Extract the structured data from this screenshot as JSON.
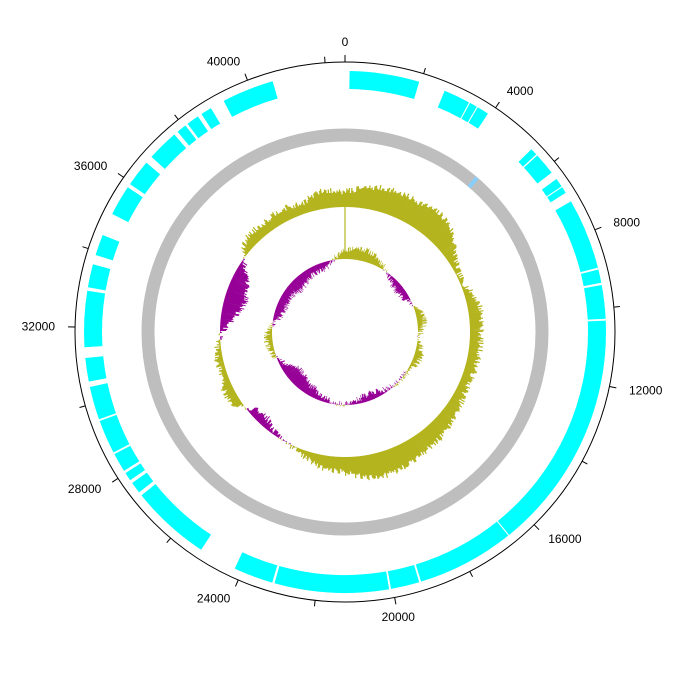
{
  "genome_map": {
    "type": "circular-genome-map",
    "total_length": 42500,
    "tick_interval": 4000,
    "tick_labels": [
      "0",
      "4000",
      "8000",
      "12000",
      "16000",
      "20000",
      "24000",
      "28000",
      "32000",
      "36000",
      "40000"
    ],
    "colors": {
      "feature": "#00ffff",
      "backbone": "#bebebe",
      "backbone_mark": "#87cefa",
      "gc_positive": "#b4b41e",
      "gc_negative": "#960096",
      "axis": "#000000"
    },
    "features": [
      {
        "start": 120,
        "end": 1950
      },
      {
        "start": 2650,
        "end": 3350
      },
      {
        "start": 3380,
        "end": 3580
      },
      {
        "start": 3610,
        "end": 3920
      },
      {
        "start": 5380,
        "end": 5560
      },
      {
        "start": 5600,
        "end": 6180
      },
      {
        "start": 6390,
        "end": 6620
      },
      {
        "start": 6650,
        "end": 6820
      },
      {
        "start": 7080,
        "end": 8940
      },
      {
        "start": 8990,
        "end": 9340
      },
      {
        "start": 9400,
        "end": 10280
      },
      {
        "start": 10330,
        "end": 16650
      },
      {
        "start": 16680,
        "end": 19250
      },
      {
        "start": 19300,
        "end": 20050
      },
      {
        "start": 20100,
        "end": 23100
      },
      {
        "start": 23160,
        "end": 24200
      },
      {
        "start": 25200,
        "end": 27300
      },
      {
        "start": 27400,
        "end": 27700
      },
      {
        "start": 27790,
        "end": 28010
      },
      {
        "start": 28080,
        "end": 28580
      },
      {
        "start": 28630,
        "end": 29520
      },
      {
        "start": 29570,
        "end": 30440
      },
      {
        "start": 30580,
        "end": 31200
      },
      {
        "start": 31480,
        "end": 32950
      },
      {
        "start": 33040,
        "end": 33650
      },
      {
        "start": 33900,
        "end": 34450
      },
      {
        "start": 35050,
        "end": 35850
      },
      {
        "start": 35950,
        "end": 36650
      },
      {
        "start": 36850,
        "end": 37680
      },
      {
        "start": 37790,
        "end": 38050
      },
      {
        "start": 38120,
        "end": 38450
      },
      {
        "start": 38560,
        "end": 38850
      },
      {
        "start": 39230,
        "end": 40600
      }
    ],
    "backbone_marks": [
      {
        "start": 4720,
        "end": 4860
      }
    ]
  }
}
